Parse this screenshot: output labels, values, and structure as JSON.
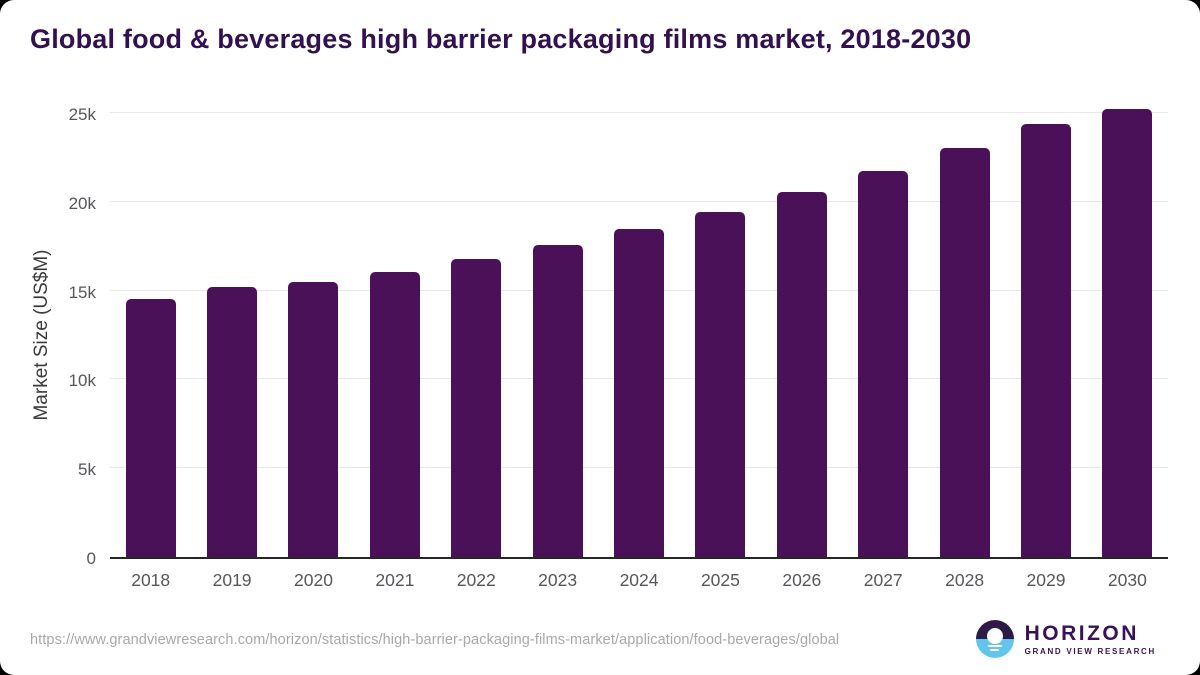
{
  "title": "Global food & beverages high barrier packaging films market, 2018-2030",
  "chart_data": {
    "type": "bar",
    "title": "Global food & beverages high barrier packaging films market, 2018-2030",
    "categories": [
      "2018",
      "2019",
      "2020",
      "2021",
      "2022",
      "2023",
      "2024",
      "2025",
      "2026",
      "2027",
      "2028",
      "2029",
      "2030"
    ],
    "values": [
      14550,
      15200,
      15500,
      16050,
      16800,
      17550,
      18450,
      19450,
      20550,
      21750,
      23000,
      24400,
      25200
    ],
    "xlabel": "",
    "ylabel": "Market Size (US$M)",
    "ylim": [
      0,
      26460
    ],
    "yticks": [
      {
        "value": 0,
        "label": "0"
      },
      {
        "value": 5000,
        "label": "5k"
      },
      {
        "value": 10000,
        "label": "10k"
      },
      {
        "value": 15000,
        "label": "15k"
      },
      {
        "value": 20000,
        "label": "20k"
      },
      {
        "value": 25000,
        "label": "25k"
      }
    ],
    "grid": true,
    "legend": false,
    "bar_color": "#4a1158"
  },
  "colors": {
    "title": "#321150",
    "bar": "#4a1158",
    "gridline": "#e8e8e8",
    "axis_line": "#262626",
    "tick_text": "#55575a",
    "url_text": "#a8a8a8",
    "logo_purple": "#2d1a45",
    "logo_blue": "#62c5ec"
  },
  "footer": {
    "source_url": "https://www.grandviewresearch.com/horizon/statistics/high-barrier-packaging-films-market/application/food-beverages/global",
    "logo": {
      "name": "HORIZON",
      "subtitle": "GRAND VIEW RESEARCH"
    }
  }
}
